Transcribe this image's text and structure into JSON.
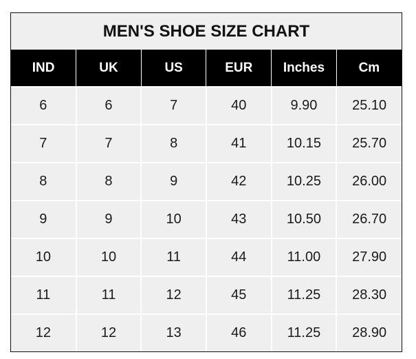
{
  "title": "MEN'S SHOE SIZE CHART",
  "columns": [
    "IND",
    "UK",
    "US",
    "EUR",
    "Inches",
    "Cm"
  ],
  "rows": [
    [
      "6",
      "6",
      "7",
      "40",
      "9.90",
      "25.10"
    ],
    [
      "7",
      "7",
      "8",
      "41",
      "10.15",
      "25.70"
    ],
    [
      "8",
      "8",
      "9",
      "42",
      "10.25",
      "26.00"
    ],
    [
      "9",
      "9",
      "10",
      "43",
      "10.50",
      "26.70"
    ],
    [
      "10",
      "10",
      "11",
      "44",
      "11.00",
      "27.90"
    ],
    [
      "11",
      "11",
      "12",
      "45",
      "11.25",
      "28.30"
    ],
    [
      "12",
      "12",
      "13",
      "46",
      "11.25",
      "28.90"
    ]
  ],
  "colors": {
    "header_bg": "#000000",
    "header_text": "#ffffff",
    "cell_bg": "#efefef",
    "grid": "#ffffff",
    "border": "#111111"
  }
}
